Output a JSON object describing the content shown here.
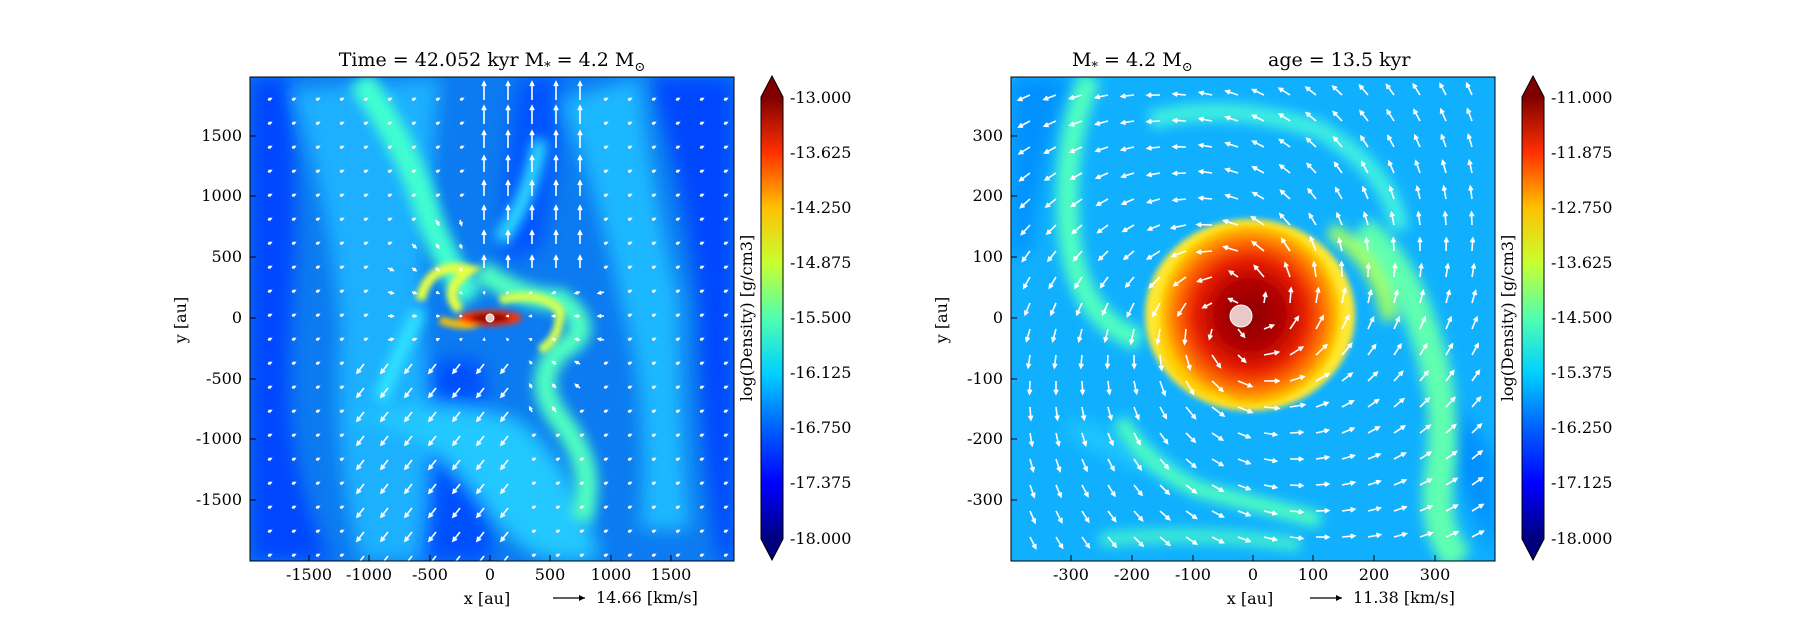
{
  "chart_data": [
    {
      "type": "heatmap",
      "title": "Time = 42.052 kyr    M",
      "title_sub": "*",
      "title_mid": " = 4.2 M",
      "title_sun": "⊙",
      "xlabel": "x [au]",
      "ylabel": "y [au]",
      "xlim": [
        -2000,
        2000
      ],
      "ylim": [
        -2000,
        2000
      ],
      "xticks": [
        -1500,
        -1000,
        -500,
        0,
        500,
        1000,
        1500
      ],
      "yticks": [
        1500,
        1000,
        500,
        0,
        -500,
        -1000,
        -1500
      ],
      "xtick_labels": [
        "-1500",
        "-1000",
        "-500",
        "0",
        "500",
        "1000",
        "1500"
      ],
      "ytick_labels": [
        "1500",
        "1000",
        "500",
        "0",
        "-500",
        "-1000",
        "-1500"
      ],
      "vector_key": "14.66 [km/s]",
      "colorbar": {
        "label": "log(Density) [g/cm3]",
        "min": -18.0,
        "max": -13.0,
        "ticks": [
          -13.0,
          -13.625,
          -14.25,
          -14.875,
          -15.5,
          -16.125,
          -16.75,
          -17.375,
          -18.0
        ],
        "tick_labels": [
          "-13.000",
          "-13.625",
          "-14.250",
          "-14.875",
          "-15.500",
          "-16.125",
          "-16.750",
          "-17.375",
          "-18.000"
        ]
      },
      "structure": "bipolar outflow with filamentary envelope and compact central disk"
    },
    {
      "type": "heatmap",
      "title": "M",
      "title_sub": "*",
      "title_mid": " = 4.2 M",
      "title_sun": "⊙",
      "title_age": "age = 13.5 kyr",
      "xlabel": "x [au]",
      "ylabel": "y [au]",
      "xlim": [
        -400,
        400
      ],
      "ylim": [
        -400,
        400
      ],
      "xticks": [
        -300,
        -200,
        -100,
        0,
        100,
        200,
        300
      ],
      "yticks": [
        300,
        200,
        100,
        0,
        -100,
        -200,
        -300
      ],
      "xtick_labels": [
        "-300",
        "-200",
        "-100",
        "0",
        "100",
        "200",
        "300"
      ],
      "ytick_labels": [
        "300",
        "200",
        "100",
        "0",
        "-100",
        "-200",
        "-300"
      ],
      "vector_key": "11.38 [km/s]",
      "colorbar": {
        "label": "log(Density) [g/cm3]",
        "min": -18.0,
        "max": -11.0,
        "ticks": [
          -11.0,
          -11.875,
          -12.75,
          -13.625,
          -14.5,
          -15.375,
          -16.25,
          -17.125,
          -18.0
        ],
        "tick_labels": [
          "-11.000",
          "-11.875",
          "-12.750",
          "-13.625",
          "-14.500",
          "-15.375",
          "-16.250",
          "-17.125",
          "-18.000"
        ]
      },
      "structure": "rotating accretion disk with two spiral arms"
    }
  ],
  "colors": {
    "jet": [
      "#00007f",
      "#0000ff",
      "#007fff",
      "#00ffff",
      "#7fff7f",
      "#ffff00",
      "#ff7f00",
      "#ff0000",
      "#7f0000"
    ],
    "vectors": "#ffffff",
    "sink": "#e8c8c8"
  }
}
